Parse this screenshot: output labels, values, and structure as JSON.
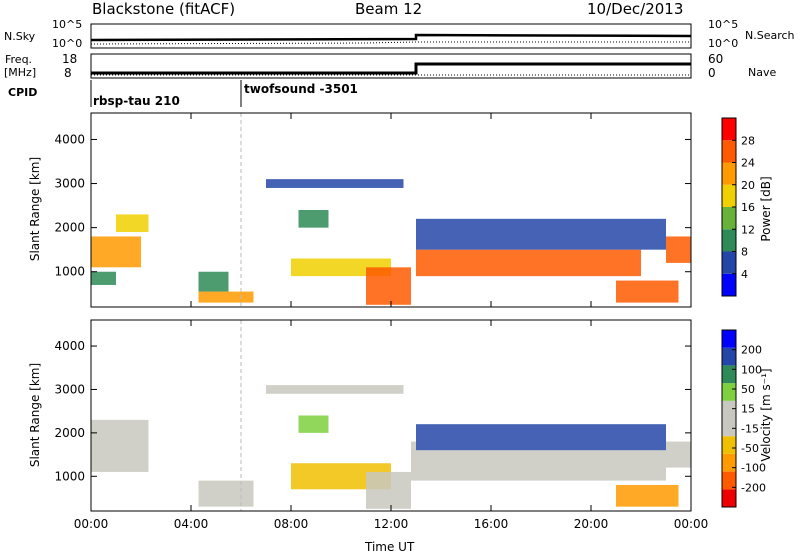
{
  "header": {
    "station": "Blackstone (fitACF)",
    "beam": "Beam 12",
    "date": "10/Dec/2013"
  },
  "strip_labels": {
    "nsky": "N.Sky",
    "nsearch": "N.Search",
    "freq": "Freq.",
    "freq_unit": "[MHz]",
    "nave": "Nave",
    "cpid": "CPID"
  },
  "strip_ticks": {
    "noise_left": [
      "10^5",
      "10^0"
    ],
    "noise_right": [
      "10^5",
      "10^0"
    ],
    "freq_left": [
      "18",
      "8"
    ],
    "nave_right": [
      "60",
      "0"
    ]
  },
  "cpid_segments": [
    {
      "label": "rbsp-tau 210",
      "start_hour": 0
    },
    {
      "label": "twofsound -3501",
      "start_hour": 6
    }
  ],
  "colors": {
    "power_scale": [
      "#0000ff",
      "#2446a8",
      "#2e8b57",
      "#67b33a",
      "#f0d000",
      "#ff9a00",
      "#ff5a00",
      "#ff0000"
    ],
    "velocity_scale": [
      "#ee0000",
      "#ff5a00",
      "#ff9a00",
      "#f0c000",
      "#c8c8c0",
      "#c8c8c0",
      "#7ed040",
      "#2e8b57",
      "#2446a8",
      "#0000ff"
    ]
  },
  "chart_data": [
    {
      "type": "heatmap",
      "name": "power",
      "ylabel": "Slant Range [km]",
      "xlabel": "Time UT",
      "xlim_hours": [
        0,
        24
      ],
      "ylim": [
        200,
        4600
      ],
      "x_ticks": [
        "00:00",
        "04:00",
        "08:00",
        "12:00",
        "16:00",
        "20:00",
        "00:00"
      ],
      "y_ticks": [
        1000,
        2000,
        3000,
        4000
      ],
      "colorbar_label": "Power [dB]",
      "colorbar_ticks": [
        "28",
        "24",
        "20",
        "16",
        "12",
        "8",
        "4"
      ],
      "clim": [
        0,
        32
      ],
      "regions": [
        {
          "t": [
            0.0,
            2.0
          ],
          "r": [
            1100,
            1800
          ],
          "val": 22
        },
        {
          "t": [
            1.0,
            2.3
          ],
          "r": [
            1900,
            2300
          ],
          "val": 18
        },
        {
          "t": [
            0.0,
            1.0
          ],
          "r": [
            700,
            1000
          ],
          "val": 10
        },
        {
          "t": [
            4.3,
            6.5
          ],
          "r": [
            300,
            550
          ],
          "val": 22
        },
        {
          "t": [
            4.3,
            5.5
          ],
          "r": [
            550,
            1000
          ],
          "val": 10
        },
        {
          "t": [
            8.0,
            12.0
          ],
          "r": [
            900,
            1300
          ],
          "val": 18
        },
        {
          "t": [
            11.0,
            12.8
          ],
          "r": [
            250,
            1100
          ],
          "val": 26
        },
        {
          "t": [
            8.3,
            9.5
          ],
          "r": [
            2000,
            2400
          ],
          "val": 8
        },
        {
          "t": [
            7.0,
            12.5
          ],
          "r": [
            2900,
            3100
          ],
          "val": 6
        },
        {
          "t": [
            13.0,
            22.0
          ],
          "r": [
            900,
            1500
          ],
          "val": 27
        },
        {
          "t": [
            13.0,
            23.0
          ],
          "r": [
            1500,
            2200
          ],
          "val": 6
        },
        {
          "t": [
            21.0,
            23.5
          ],
          "r": [
            300,
            800
          ],
          "val": 26
        },
        {
          "t": [
            23.0,
            24.0
          ],
          "r": [
            1200,
            1800
          ],
          "val": 24
        }
      ]
    },
    {
      "type": "heatmap",
      "name": "velocity",
      "ylabel": "Slant Range [km]",
      "xlabel": "Time UT",
      "xlim_hours": [
        0,
        24
      ],
      "ylim": [
        200,
        4600
      ],
      "x_ticks": [
        "00:00",
        "04:00",
        "08:00",
        "12:00",
        "16:00",
        "20:00",
        "00:00"
      ],
      "y_ticks": [
        1000,
        2000,
        3000,
        4000
      ],
      "colorbar_label": "Velocity [m s⁻¹]",
      "colorbar_ticks": [
        "200",
        "100",
        "50",
        "15",
        "-15",
        "-50",
        "-100",
        "-200"
      ],
      "clim": [
        -250,
        250
      ],
      "regions": [
        {
          "t": [
            0.0,
            2.3
          ],
          "r": [
            1100,
            2300
          ],
          "val": 0
        },
        {
          "t": [
            4.3,
            6.5
          ],
          "r": [
            300,
            900
          ],
          "val": 0
        },
        {
          "t": [
            8.0,
            12.0
          ],
          "r": [
            700,
            1300
          ],
          "val": -60
        },
        {
          "t": [
            11.0,
            12.8
          ],
          "r": [
            250,
            1100
          ],
          "val": 0
        },
        {
          "t": [
            8.3,
            9.5
          ],
          "r": [
            2000,
            2400
          ],
          "val": 60
        },
        {
          "t": [
            7.0,
            12.5
          ],
          "r": [
            2900,
            3100
          ],
          "val": -40
        },
        {
          "t": [
            12.8,
            13.0
          ],
          "r": [
            900,
            1800
          ],
          "val": 30
        },
        {
          "t": [
            13.0,
            23.0
          ],
          "r": [
            900,
            1600
          ],
          "val": 0
        },
        {
          "t": [
            13.0,
            23.0
          ],
          "r": [
            1600,
            2200
          ],
          "val": 150
        },
        {
          "t": [
            21.0,
            23.5
          ],
          "r": [
            300,
            800
          ],
          "val": -120
        },
        {
          "t": [
            23.0,
            24.0
          ],
          "r": [
            1200,
            1800
          ],
          "val": 0
        }
      ]
    }
  ]
}
